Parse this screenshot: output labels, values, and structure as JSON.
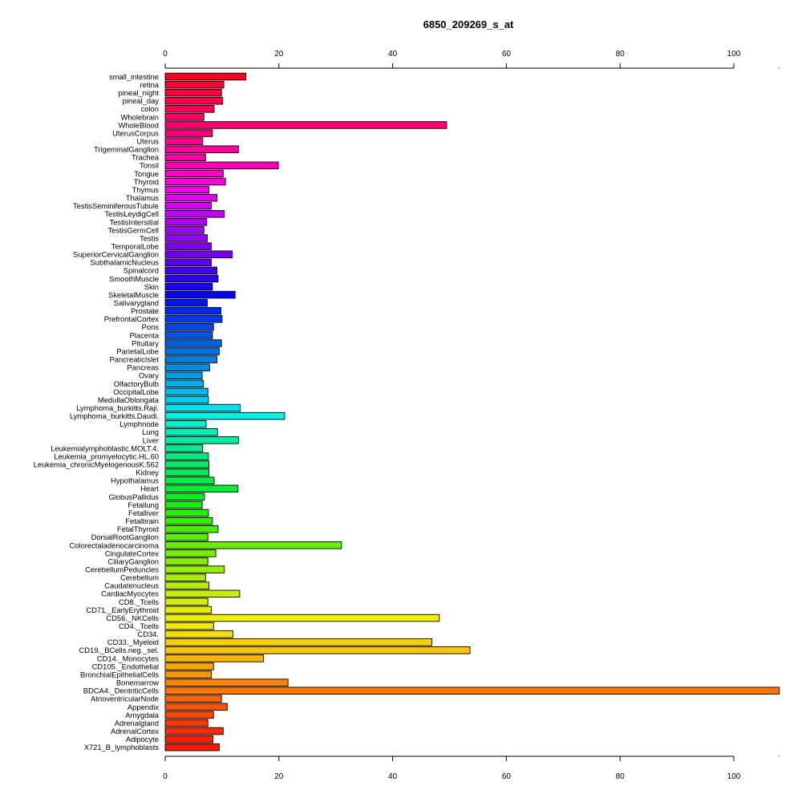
{
  "chart_data": {
    "type": "bar",
    "orientation": "horizontal",
    "title": "6850_209269_s_at",
    "xlabel": "",
    "ylabel": "",
    "xlim": [
      0,
      108
    ],
    "xticks": [
      0,
      20,
      40,
      60,
      80,
      100
    ],
    "grid": false,
    "categories": [
      "small_intestine",
      "retina",
      "pineal_night",
      "pineal_day",
      "colon",
      "Wholebrain",
      "WholeBlood",
      "UterusCorpus",
      "Uterus",
      "TrigeminalGanglion",
      "Trachea",
      "Tonsil",
      "Tongue",
      "Thyroid",
      "Thymus",
      "Thalamus",
      "TestisSeminiferousTubule",
      "TestisLeydigCell",
      "TestisIntersitial",
      "TestisGermCell",
      "Testis",
      "TemporalLobe",
      "SuperiorCervicalGanglion",
      "SubthalamicNucleus",
      "Spinalcord",
      "SmoothMuscle",
      "Skin",
      "SkeletalMuscle",
      "Salivarygland",
      "Prostate",
      "PrefrontalCortex",
      "Pons",
      "Placenta",
      "Pituitary",
      "ParietalLobe",
      "PancreaticIslet",
      "Pancreas",
      "Ovary",
      "OlfactoryBulb",
      "OccipitalLobe",
      "MedullaOblongata",
      "Lymphoma_burkitts.Raji.",
      "Lymphoma_burkitts.Daudi.",
      "Lymphnode",
      "Lung",
      "Liver",
      "Leukemialymphoblastic.MOLT.4.",
      "Leukemia_promyelocytic.HL.60",
      "Leukemia_chronicMyelogenousK.562",
      "Kidney",
      "Hypothalamus",
      "Heart",
      "GlobusPallidus",
      "Fetallung",
      "Fetalliver",
      "Fetalbrain",
      "FetalThyroid",
      "DorsalRootGanglion",
      "Colorectaladenocarcinoma",
      "CingulateCortex",
      "CiliaryGanglion",
      "CerebellumPeduncles",
      "Cerebellum",
      "Caudatenucleus",
      "CardiacMyocytes",
      "CD8._Tcells",
      "CD71._EarlyErythroid",
      "CD56._NKCells",
      "CD4._Tcells",
      "CD34.",
      "CD33._Myeloid",
      "CD19._BCells.neg._sel.",
      "CD14._Monocytes",
      "CD105._Endothelial",
      "BronchialEpithelialCells",
      "Bonemarrow",
      "BDCA4._DentriticCells",
      "AtrioventricularNode",
      "Appendix",
      "Amygdala",
      "Adrenalgland",
      "AdrenalCortex",
      "Adipocyte",
      "X721_B_lymphoblasts"
    ],
    "values": [
      14.2,
      10.3,
      9.9,
      10.1,
      8.6,
      6.8,
      49.5,
      8.3,
      6.6,
      12.9,
      7.1,
      19.9,
      10.2,
      10.6,
      7.7,
      9.1,
      8.1,
      10.4,
      7.3,
      6.8,
      7.4,
      8.1,
      11.8,
      8.1,
      9.1,
      9.3,
      8.3,
      12.3,
      7.4,
      9.8,
      10.0,
      8.5,
      8.3,
      9.9,
      9.5,
      9.1,
      7.8,
      6.5,
      6.7,
      7.5,
      7.6,
      13.2,
      21.0,
      7.2,
      9.2,
      12.9,
      6.6,
      7.6,
      7.7,
      7.7,
      8.6,
      12.8,
      6.9,
      6.5,
      7.6,
      8.3,
      9.3,
      7.5,
      31.0,
      8.9,
      7.5,
      10.4,
      7.1,
      7.7,
      13.1,
      7.5,
      8.1,
      48.2,
      8.5,
      11.9,
      46.9,
      53.6,
      17.3,
      8.5,
      8.1,
      21.6,
      108.0,
      9.9,
      10.9,
      8.5,
      7.5,
      10.2,
      8.4,
      9.5
    ],
    "bar_colors": [
      "#ff0022",
      "#ff0033",
      "#ff003f",
      "#ff0049",
      "#ff0055",
      "#ff0062",
      "#ff0071",
      "#ff007f",
      "#ff008c",
      "#ff0099",
      "#ff00a8",
      "#ff00b8",
      "#ff00c8",
      "#ff00d8",
      "#f000e8",
      "#e000f2",
      "#d000f5",
      "#c000f6",
      "#b000f6",
      "#a000f5",
      "#9100f3",
      "#8200f2",
      "#6f00f0",
      "#5c00ee",
      "#4400f0",
      "#2e00f2",
      "#1a00f6",
      "#0800f8",
      "#0017f5",
      "#0028f0",
      "#0038ec",
      "#0046ea",
      "#0055e6",
      "#0062e4",
      "#0070e2",
      "#007ee2",
      "#008de4",
      "#009ce6",
      "#00acea",
      "#00bcee",
      "#00ccf0",
      "#00e0ee",
      "#00f2e6",
      "#00f0cc",
      "#00eeb8",
      "#00eca2",
      "#00ea8e",
      "#00ea7a",
      "#00ea68",
      "#00ea54",
      "#00ec44",
      "#00ee34",
      "#08ee22",
      "#18ee14",
      "#28ee0c",
      "#38ee08",
      "#48ee08",
      "#58ee08",
      "#66ee08",
      "#74ee08",
      "#84ee08",
      "#96ee08",
      "#a6ee08",
      "#b6ee08",
      "#c6ee08",
      "#d6ee08",
      "#e4ee08",
      "#eeee08",
      "#f4e808",
      "#f8de08",
      "#fcd206",
      "#fcc406",
      "#fcb404",
      "#fca404",
      "#fc9404",
      "#fc8402",
      "#fc7402",
      "#fc6402",
      "#fc5402",
      "#fc4602",
      "#fc3802",
      "#fc2c02",
      "#f82202",
      "#f01a02"
    ]
  }
}
